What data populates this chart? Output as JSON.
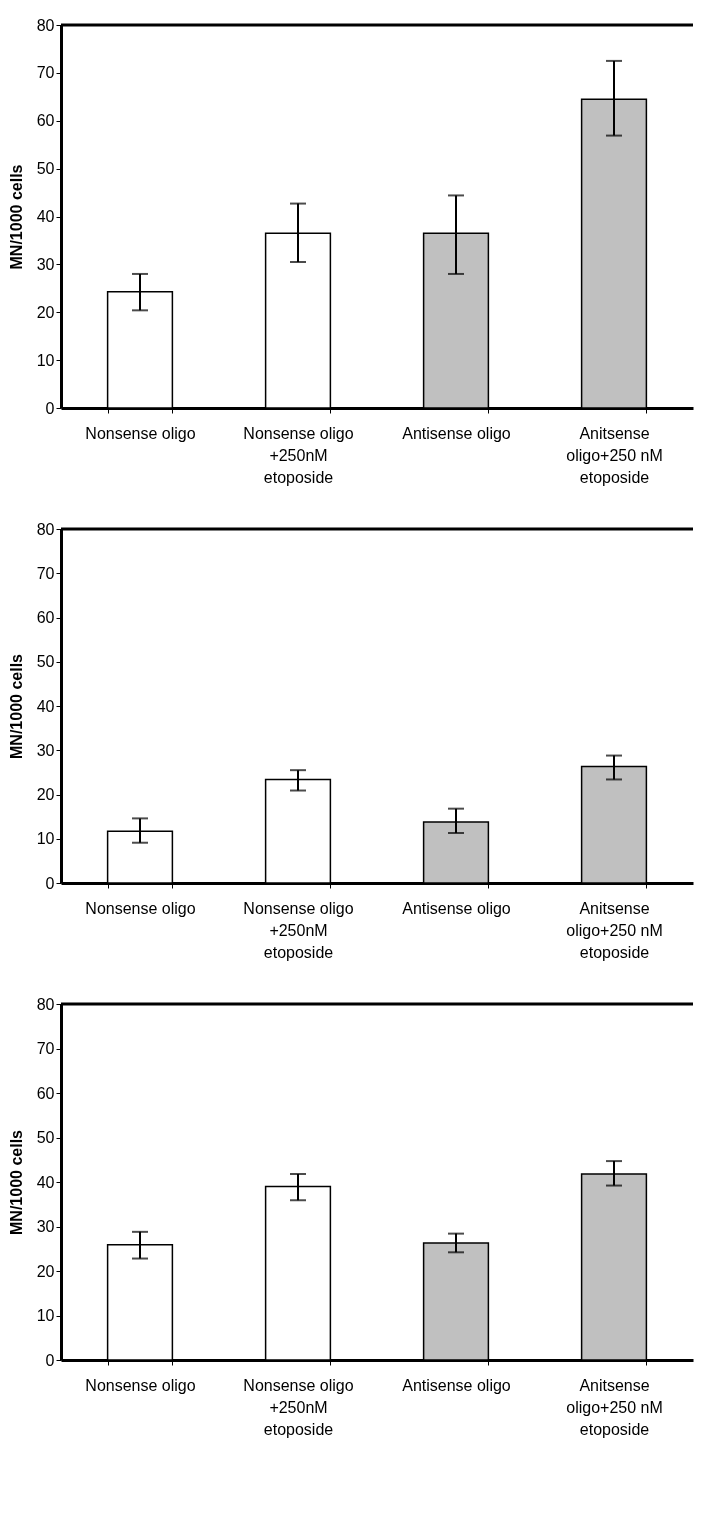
{
  "chart_data": [
    {
      "type": "bar",
      "ylabel": "MN/1000 cells",
      "categories": [
        "Nonsense oligo",
        "Nonsense oligo +250nM etoposide",
        "Antisense oligo",
        "Anitsense oligo+250 nM etoposide"
      ],
      "values": [
        24.3,
        36.5,
        36.5,
        64.5
      ],
      "colors": [
        "#ffffff",
        "#ffffff",
        "#c0c0c0",
        "#c0c0c0"
      ],
      "errors": [
        [
          20.4,
          28.0
        ],
        [
          30.5,
          42.7
        ],
        [
          28.0,
          44.4
        ],
        [
          56.9,
          72.5
        ]
      ],
      "ylim": [
        0,
        80
      ],
      "yticks": [
        0,
        10,
        20,
        30,
        40,
        50,
        60,
        70,
        80
      ],
      "grid": false
    },
    {
      "type": "bar",
      "ylabel": "MN/1000 cells",
      "categories": [
        "Nonsense oligo",
        "Nonsense oligo +250nM etoposide",
        "Antisense oligo",
        "Anitsense oligo+250 nM etoposide"
      ],
      "values": [
        11.7,
        23.4,
        13.8,
        26.3
      ],
      "colors": [
        "#ffffff",
        "#ffffff",
        "#c0c0c0",
        "#c0c0c0"
      ],
      "errors": [
        [
          9.1,
          14.6
        ],
        [
          20.9,
          25.5
        ],
        [
          11.3,
          16.8
        ],
        [
          23.4,
          28.8
        ]
      ],
      "ylim": [
        0,
        80
      ],
      "yticks": [
        0,
        10,
        20,
        30,
        40,
        50,
        60,
        70,
        80
      ],
      "grid": false
    },
    {
      "type": "bar",
      "ylabel": "MN/1000 cells",
      "categories": [
        "Nonsense oligo",
        "Nonsense oligo +250nM etoposide",
        "Antisense oligo",
        "Anitsense oligo+250 nM etoposide"
      ],
      "values": [
        25.9,
        39.0,
        26.3,
        41.8
      ],
      "colors": [
        "#ffffff",
        "#ffffff",
        "#c0c0c0",
        "#c0c0c0"
      ],
      "errors": [
        [
          22.8,
          28.8
        ],
        [
          35.9,
          41.8
        ],
        [
          24.2,
          28.4
        ],
        [
          39.2,
          44.7
        ]
      ],
      "ylim": [
        0,
        80
      ],
      "yticks": [
        0,
        10,
        20,
        30,
        40,
        50,
        60,
        70,
        80
      ],
      "grid": false
    }
  ]
}
